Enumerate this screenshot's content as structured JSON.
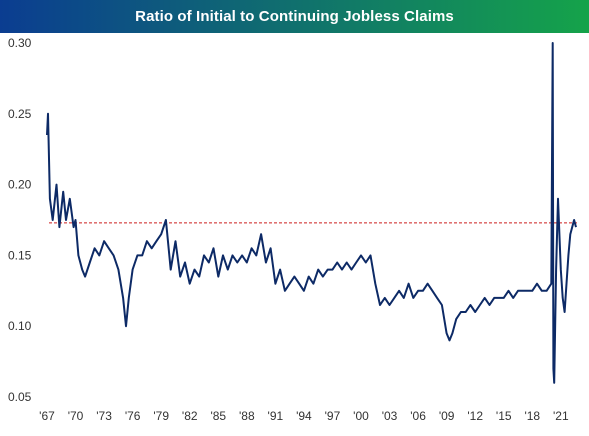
{
  "chart_data": {
    "type": "line",
    "title": "Ratio of Initial to Continuing Jobless Claims",
    "title_gradient": [
      "#0b3d91",
      "#15a34a"
    ],
    "series_color": "#0d2a66",
    "reference_color": "#cc1f1f",
    "xlabel": "",
    "ylabel": "",
    "x_tick_labels": [
      "'67",
      "'70",
      "'73",
      "'76",
      "'79",
      "'82",
      "'85",
      "'88",
      "'91",
      "'94",
      "'97",
      "'00",
      "'03",
      "'06",
      "'09",
      "'12",
      "'15",
      "'18",
      "'21"
    ],
    "x_tick_years": [
      1967,
      1970,
      1973,
      1976,
      1979,
      1982,
      1985,
      1988,
      1991,
      1994,
      1997,
      2000,
      2003,
      2006,
      2009,
      2012,
      2015,
      2018,
      2021
    ],
    "xlim": [
      1967,
      2022.7
    ],
    "y_ticks": [
      "0.05",
      "0.10",
      "0.15",
      "0.20",
      "0.25",
      "0.30"
    ],
    "y_tick_values": [
      0.05,
      0.1,
      0.15,
      0.2,
      0.25,
      0.3
    ],
    "ylim": [
      0.05,
      0.3
    ],
    "grid": false,
    "reference_line": {
      "y": 0.173,
      "style": "dashed"
    },
    "series": [
      {
        "x": [
          1967.0,
          1967.1,
          1967.3,
          1967.6,
          1968.0,
          1968.3,
          1968.7,
          1969.0,
          1969.4,
          1969.8,
          1970.0,
          1970.3,
          1970.7,
          1971.0,
          1971.5,
          1972.0,
          1972.5,
          1973.0,
          1973.5,
          1974.0,
          1974.5,
          1975.0,
          1975.3,
          1975.6,
          1976.0,
          1976.5,
          1977.0,
          1977.5,
          1978.0,
          1978.5,
          1979.0,
          1979.5,
          1980.0,
          1980.5,
          1981.0,
          1981.5,
          1982.0,
          1982.5,
          1983.0,
          1983.5,
          1984.0,
          1984.5,
          1985.0,
          1985.5,
          1986.0,
          1986.5,
          1987.0,
          1987.5,
          1988.0,
          1988.5,
          1989.0,
          1989.5,
          1990.0,
          1990.5,
          1991.0,
          1991.5,
          1992.0,
          1992.5,
          1993.0,
          1993.5,
          1994.0,
          1994.5,
          1995.0,
          1995.5,
          1996.0,
          1996.5,
          1997.0,
          1997.5,
          1998.0,
          1998.5,
          1999.0,
          1999.5,
          2000.0,
          2000.5,
          2001.0,
          2001.5,
          2002.0,
          2002.5,
          2003.0,
          2003.5,
          2004.0,
          2004.5,
          2005.0,
          2005.5,
          2006.0,
          2006.5,
          2007.0,
          2007.5,
          2008.0,
          2008.5,
          2009.0,
          2009.3,
          2009.6,
          2010.0,
          2010.5,
          2011.0,
          2011.5,
          2012.0,
          2012.5,
          2013.0,
          2013.5,
          2014.0,
          2014.5,
          2015.0,
          2015.5,
          2016.0,
          2016.5,
          2017.0,
          2017.5,
          2018.0,
          2018.5,
          2019.0,
          2019.5,
          2020.0,
          2020.15,
          2020.22,
          2020.3,
          2020.5,
          2020.7,
          2021.0,
          2021.2,
          2021.4,
          2021.6,
          2021.8,
          2022.0,
          2022.2,
          2022.4,
          2022.6
        ],
        "values": [
          0.235,
          0.25,
          0.19,
          0.175,
          0.2,
          0.17,
          0.195,
          0.175,
          0.19,
          0.17,
          0.175,
          0.15,
          0.14,
          0.135,
          0.145,
          0.155,
          0.15,
          0.16,
          0.155,
          0.15,
          0.14,
          0.12,
          0.1,
          0.12,
          0.14,
          0.15,
          0.15,
          0.16,
          0.155,
          0.16,
          0.165,
          0.175,
          0.14,
          0.16,
          0.135,
          0.145,
          0.13,
          0.14,
          0.135,
          0.15,
          0.145,
          0.155,
          0.135,
          0.15,
          0.14,
          0.15,
          0.145,
          0.15,
          0.145,
          0.155,
          0.15,
          0.165,
          0.145,
          0.155,
          0.13,
          0.14,
          0.125,
          0.13,
          0.135,
          0.13,
          0.125,
          0.135,
          0.13,
          0.14,
          0.135,
          0.14,
          0.14,
          0.145,
          0.14,
          0.145,
          0.14,
          0.145,
          0.15,
          0.145,
          0.15,
          0.13,
          0.115,
          0.12,
          0.115,
          0.12,
          0.125,
          0.12,
          0.13,
          0.12,
          0.125,
          0.125,
          0.13,
          0.125,
          0.12,
          0.115,
          0.095,
          0.09,
          0.095,
          0.105,
          0.11,
          0.11,
          0.115,
          0.11,
          0.115,
          0.12,
          0.115,
          0.12,
          0.12,
          0.12,
          0.125,
          0.12,
          0.125,
          0.125,
          0.125,
          0.125,
          0.13,
          0.125,
          0.125,
          0.13,
          0.3,
          0.07,
          0.06,
          0.14,
          0.19,
          0.14,
          0.12,
          0.11,
          0.13,
          0.15,
          0.165,
          0.17,
          0.175,
          0.17
        ]
      }
    ]
  }
}
